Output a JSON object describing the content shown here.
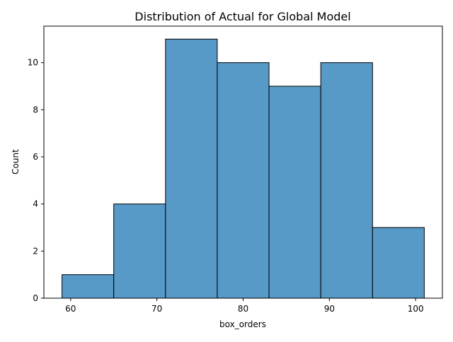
{
  "chart_data": {
    "type": "bar",
    "title": "Distribution of Actual for Global Model",
    "xlabel": "box_orders",
    "ylabel": "Count",
    "bins": [
      {
        "start": 59,
        "end": 65,
        "count": 1
      },
      {
        "start": 65,
        "end": 71,
        "count": 4
      },
      {
        "start": 71,
        "end": 77,
        "count": 11
      },
      {
        "start": 77,
        "end": 83,
        "count": 10
      },
      {
        "start": 83,
        "end": 89,
        "count": 9
      },
      {
        "start": 89,
        "end": 95,
        "count": 10
      },
      {
        "start": 95,
        "end": 101,
        "count": 3
      }
    ],
    "xlim": [
      56.9,
      103.1
    ],
    "ylim": [
      0,
      11.55
    ],
    "xticks": [
      60,
      70,
      80,
      90,
      100
    ],
    "yticks": [
      0,
      2,
      4,
      6,
      8,
      10
    ],
    "bar_color": "#5799c7",
    "edge_color": "#000000",
    "grid": false
  }
}
